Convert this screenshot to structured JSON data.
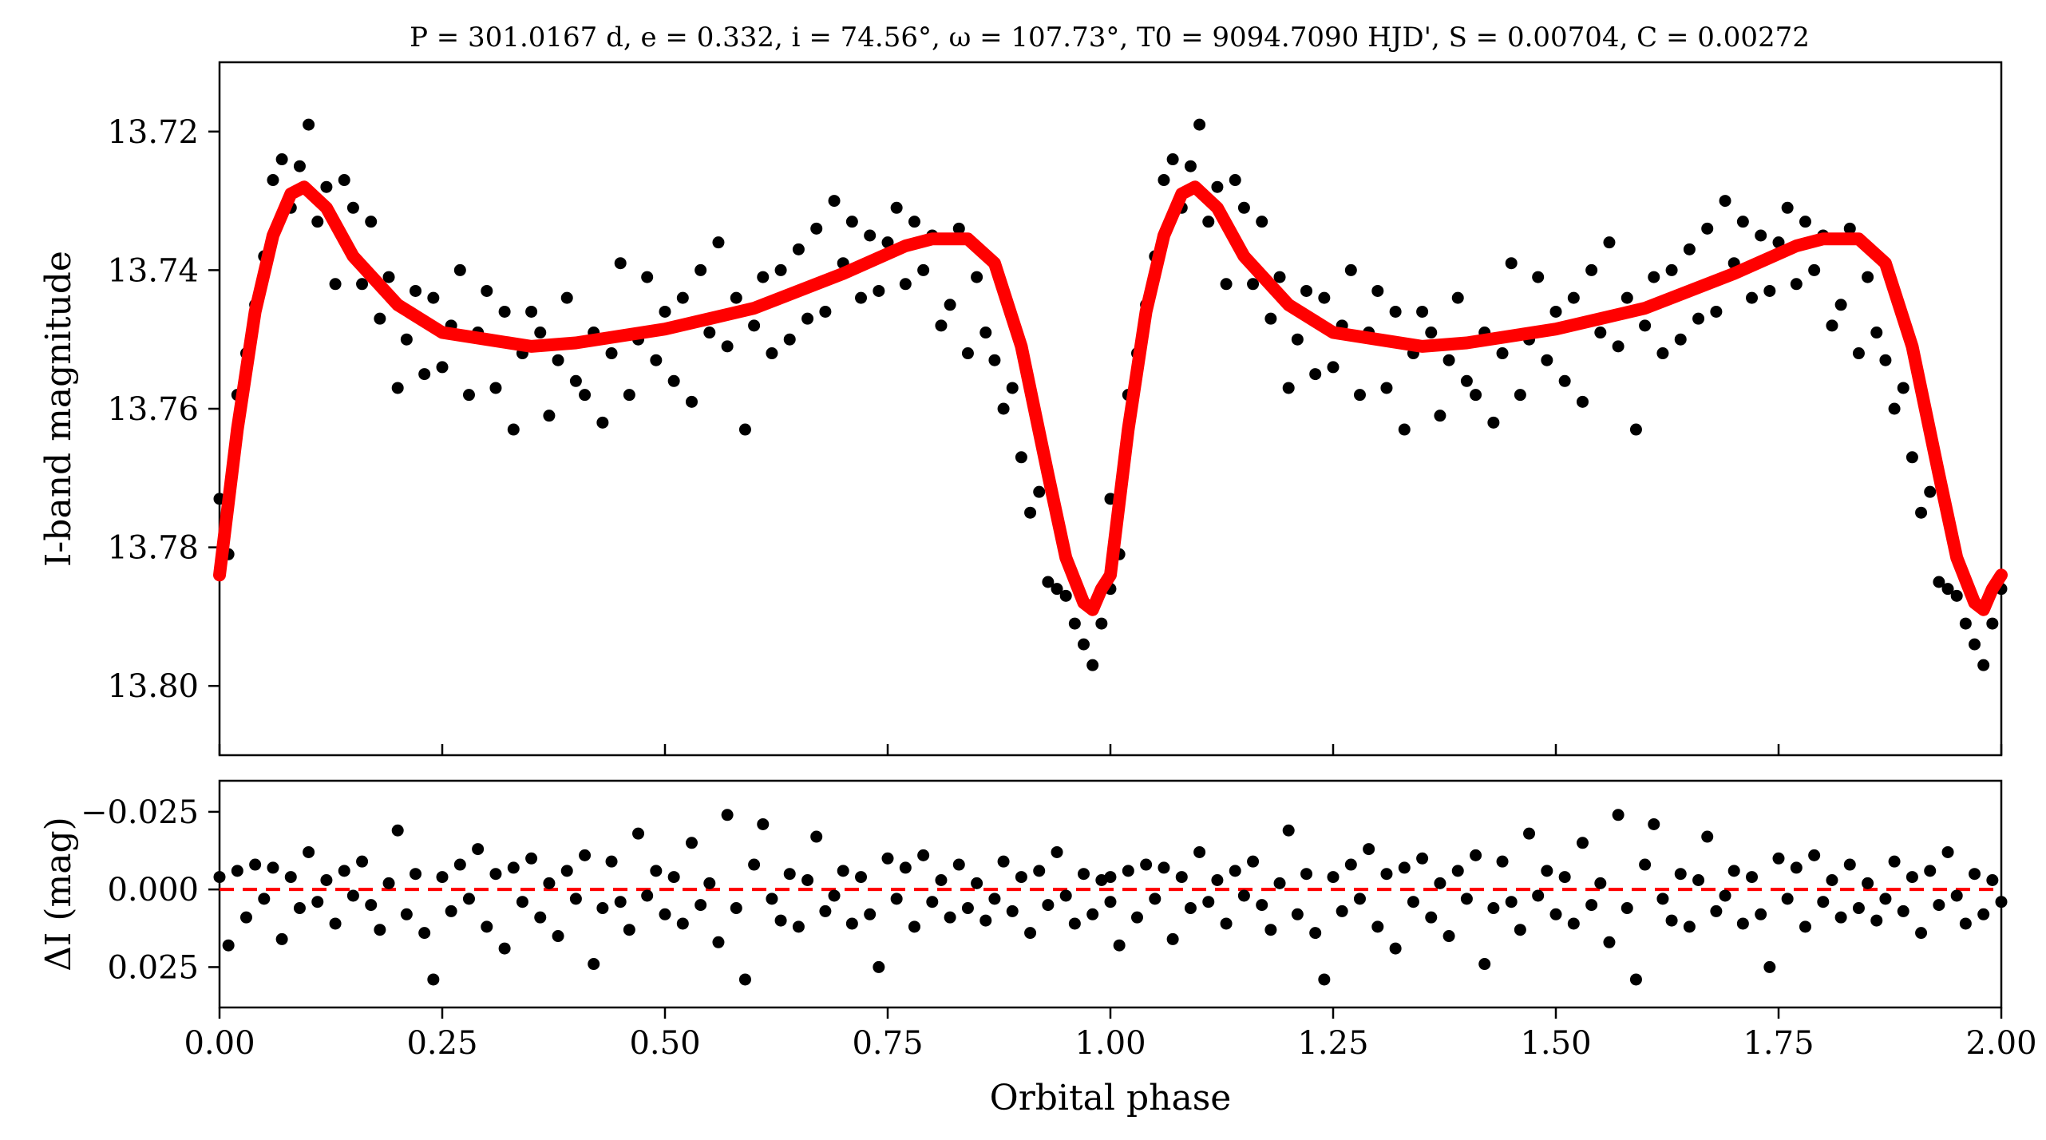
{
  "chart_data": [
    {
      "type": "scatter",
      "title": "P = 301.0167 d, e = 0.332, i = 74.56°, ω = 107.73°, T0 = 9094.7090 HJD', S = 0.00704, C = 0.00272",
      "xlabel": "",
      "ylabel": "I-band magnitude",
      "xlim": [
        0.0,
        2.0
      ],
      "ylim": [
        13.71,
        13.81
      ],
      "y_inverted": true,
      "grid": false,
      "x_ticks": [
        "0.00",
        "0.25",
        "0.50",
        "0.75",
        "1.00",
        "1.25",
        "1.50",
        "1.75",
        "2.00"
      ],
      "x_tick_labels_shown": false,
      "y_ticks": [
        "13.72",
        "13.74",
        "13.76",
        "13.78",
        "13.80"
      ],
      "model": {
        "color": "#ff0000",
        "phase": [
          0.0,
          0.02,
          0.04,
          0.06,
          0.08,
          0.095,
          0.12,
          0.15,
          0.2,
          0.25,
          0.3,
          0.35,
          0.4,
          0.5,
          0.6,
          0.7,
          0.77,
          0.8,
          0.84,
          0.87,
          0.9,
          0.93,
          0.95,
          0.97,
          0.98,
          0.99,
          1.0
        ],
        "magnitude": [
          13.784,
          13.763,
          13.746,
          13.735,
          13.729,
          13.728,
          13.731,
          13.738,
          13.745,
          13.749,
          13.75,
          13.751,
          13.7505,
          13.7485,
          13.7455,
          13.7405,
          13.7365,
          13.7355,
          13.7355,
          13.739,
          13.751,
          13.7695,
          13.7815,
          13.788,
          13.789,
          13.786,
          13.784
        ]
      },
      "observations": {
        "color": "#000000",
        "phase": [
          0.0,
          0.01,
          0.02,
          0.03,
          0.04,
          0.05,
          0.06,
          0.07,
          0.08,
          0.09,
          0.1,
          0.11,
          0.12,
          0.13,
          0.14,
          0.15,
          0.16,
          0.17,
          0.18,
          0.19,
          0.2,
          0.21,
          0.22,
          0.23,
          0.24,
          0.25,
          0.26,
          0.27,
          0.28,
          0.29,
          0.3,
          0.31,
          0.32,
          0.33,
          0.34,
          0.35,
          0.36,
          0.37,
          0.38,
          0.39,
          0.4,
          0.41,
          0.42,
          0.43,
          0.44,
          0.45,
          0.46,
          0.47,
          0.48,
          0.49,
          0.5,
          0.51,
          0.52,
          0.53,
          0.54,
          0.55,
          0.56,
          0.57,
          0.58,
          0.59,
          0.6,
          0.61,
          0.62,
          0.63,
          0.64,
          0.65,
          0.66,
          0.67,
          0.68,
          0.69,
          0.7,
          0.71,
          0.72,
          0.73,
          0.74,
          0.75,
          0.76,
          0.77,
          0.78,
          0.79,
          0.8,
          0.81,
          0.82,
          0.83,
          0.84,
          0.85,
          0.86,
          0.87,
          0.88,
          0.89,
          0.9,
          0.91,
          0.92,
          0.93,
          0.94,
          0.95,
          0.96,
          0.97,
          0.98,
          0.99,
          1.0
        ],
        "magnitude": [
          13.773,
          13.781,
          13.758,
          13.752,
          13.745,
          13.738,
          13.727,
          13.724,
          13.731,
          13.725,
          13.719,
          13.733,
          13.728,
          13.742,
          13.727,
          13.731,
          13.742,
          13.733,
          13.747,
          13.741,
          13.757,
          13.75,
          13.743,
          13.755,
          13.744,
          13.754,
          13.748,
          13.74,
          13.758,
          13.749,
          13.743,
          13.757,
          13.746,
          13.763,
          13.752,
          13.746,
          13.749,
          13.761,
          13.753,
          13.744,
          13.756,
          13.758,
          13.749,
          13.762,
          13.752,
          13.739,
          13.758,
          13.75,
          13.741,
          13.753,
          13.746,
          13.756,
          13.744,
          13.759,
          13.74,
          13.749,
          13.736,
          13.751,
          13.744,
          13.763,
          13.748,
          13.741,
          13.752,
          13.74,
          13.75,
          13.737,
          13.747,
          13.734,
          13.746,
          13.73,
          13.739,
          13.733,
          13.744,
          13.735,
          13.743,
          13.736,
          13.731,
          13.742,
          13.733,
          13.74,
          13.735,
          13.748,
          13.745,
          13.734,
          13.752,
          13.741,
          13.749,
          13.753,
          13.76,
          13.757,
          13.767,
          13.775,
          13.772,
          13.785,
          13.786,
          13.787,
          13.791,
          13.794,
          13.797,
          13.791,
          13.786
        ]
      }
    },
    {
      "type": "scatter",
      "title": "",
      "xlabel": "Orbital phase",
      "ylabel": "ΔI (mag)",
      "xlim": [
        0.0,
        2.0
      ],
      "ylim": [
        -0.035,
        0.038
      ],
      "y_inverted": true,
      "grid": false,
      "x_ticks": [
        "0.00",
        "0.25",
        "0.50",
        "0.75",
        "1.00",
        "1.25",
        "1.50",
        "1.75",
        "2.00"
      ],
      "y_ticks": [
        "−0.025",
        "0.000",
        "0.025"
      ],
      "zero_line": {
        "value": 0.0,
        "color": "#ff0000",
        "style": "dashed"
      },
      "residuals": {
        "color": "#000000",
        "phase": [
          0.0,
          0.01,
          0.02,
          0.03,
          0.04,
          0.05,
          0.06,
          0.07,
          0.08,
          0.09,
          0.1,
          0.11,
          0.12,
          0.13,
          0.14,
          0.15,
          0.16,
          0.17,
          0.18,
          0.19,
          0.2,
          0.21,
          0.22,
          0.23,
          0.24,
          0.25,
          0.26,
          0.27,
          0.28,
          0.29,
          0.3,
          0.31,
          0.32,
          0.33,
          0.34,
          0.35,
          0.36,
          0.37,
          0.38,
          0.39,
          0.4,
          0.41,
          0.42,
          0.43,
          0.44,
          0.45,
          0.46,
          0.47,
          0.48,
          0.49,
          0.5,
          0.51,
          0.52,
          0.53,
          0.54,
          0.55,
          0.56,
          0.57,
          0.58,
          0.59,
          0.6,
          0.61,
          0.62,
          0.63,
          0.64,
          0.65,
          0.66,
          0.67,
          0.68,
          0.69,
          0.7,
          0.71,
          0.72,
          0.73,
          0.74,
          0.75,
          0.76,
          0.77,
          0.78,
          0.79,
          0.8,
          0.81,
          0.82,
          0.83,
          0.84,
          0.85,
          0.86,
          0.87,
          0.88,
          0.89,
          0.9,
          0.91,
          0.92,
          0.93,
          0.94,
          0.95,
          0.96,
          0.97,
          0.98,
          0.99,
          1.0
        ],
        "delta": [
          -0.004,
          0.018,
          -0.006,
          0.009,
          -0.008,
          0.003,
          -0.007,
          0.016,
          -0.004,
          0.006,
          -0.012,
          0.004,
          -0.003,
          0.011,
          -0.006,
          0.002,
          -0.009,
          0.005,
          0.013,
          -0.002,
          -0.019,
          0.008,
          -0.005,
          0.014,
          0.029,
          -0.004,
          0.007,
          -0.008,
          0.003,
          -0.013,
          0.012,
          -0.005,
          0.019,
          -0.007,
          0.004,
          -0.01,
          0.009,
          -0.002,
          0.015,
          -0.006,
          0.003,
          -0.011,
          0.024,
          0.006,
          -0.009,
          0.004,
          0.013,
          -0.018,
          0.002,
          -0.006,
          0.008,
          -0.004,
          0.011,
          -0.015,
          0.005,
          -0.002,
          0.017,
          -0.024,
          0.006,
          0.029,
          -0.008,
          -0.021,
          0.003,
          0.01,
          -0.005,
          0.012,
          -0.003,
          -0.017,
          0.007,
          0.002,
          -0.006,
          0.011,
          -0.004,
          0.008,
          0.025,
          -0.01,
          0.003,
          -0.007,
          0.012,
          -0.011,
          0.004,
          -0.003,
          0.009,
          -0.008,
          0.006,
          -0.002,
          0.01,
          0.003,
          -0.009,
          0.007,
          -0.004,
          0.014,
          -0.006,
          0.005,
          -0.012,
          0.002,
          0.011,
          -0.005,
          0.008,
          -0.003,
          0.004
        ]
      }
    }
  ]
}
